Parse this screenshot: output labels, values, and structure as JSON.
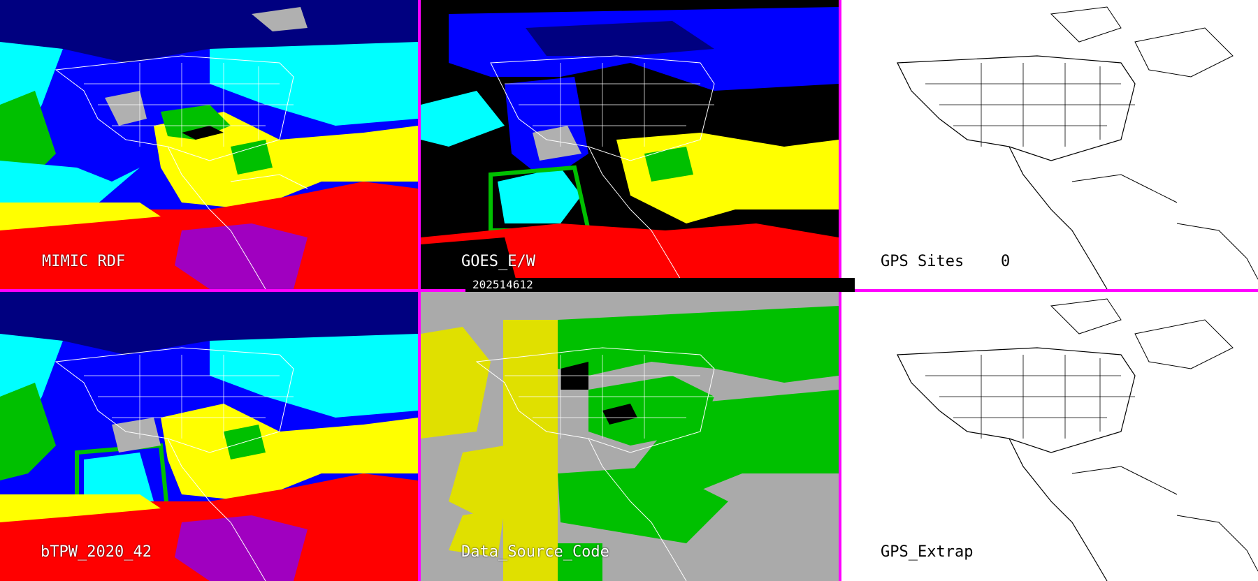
{
  "panels": [
    {
      "id": "mimic",
      "label": "MIMIC RDF"
    },
    {
      "id": "goes",
      "label": "GOES_E/W"
    },
    {
      "id": "gps_sites",
      "label": "GPS Sites",
      "count": "0"
    },
    {
      "id": "btpw",
      "label": "bTPW_2020_42"
    },
    {
      "id": "source",
      "label": "Data_Source_Code"
    },
    {
      "id": "gps_extrap",
      "label": "GPS_Extrap"
    }
  ],
  "timestamp": "202514612",
  "colors": {
    "divider": "#ff00ff",
    "tpw_scale": [
      "#ffffff",
      "#b0b0b0",
      "#000080",
      "#0000ff",
      "#00ffff",
      "#00c000",
      "#ffff00",
      "#c80000",
      "#ff0000",
      "#a000c0"
    ],
    "source_codes": [
      "#aaaaaa",
      "#e0e000",
      "#00c000",
      "#000000"
    ],
    "map_outline": "#ffffff",
    "map_outline_blank": "#000000"
  }
}
